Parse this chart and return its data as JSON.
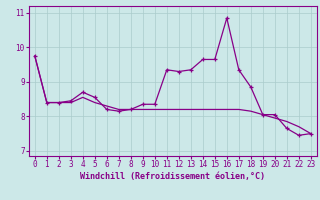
{
  "xlabel": "Windchill (Refroidissement éolien,°C)",
  "background_color": "#cce8e8",
  "line_color": "#880088",
  "grid_color": "#aacccc",
  "x_values": [
    0,
    1,
    2,
    3,
    4,
    5,
    6,
    7,
    8,
    9,
    10,
    11,
    12,
    13,
    14,
    15,
    16,
    17,
    18,
    19,
    20,
    21,
    22,
    23
  ],
  "y_values1": [
    9.75,
    8.4,
    8.4,
    8.45,
    8.7,
    8.55,
    8.2,
    8.15,
    8.2,
    8.35,
    8.35,
    9.35,
    9.3,
    9.35,
    9.65,
    9.65,
    10.85,
    9.35,
    8.85,
    8.05,
    8.05,
    7.65,
    7.45,
    7.5
  ],
  "y_values2": [
    9.75,
    8.4,
    8.4,
    8.4,
    8.55,
    8.4,
    8.3,
    8.2,
    8.2,
    8.2,
    8.2,
    8.2,
    8.2,
    8.2,
    8.2,
    8.2,
    8.2,
    8.2,
    8.15,
    8.05,
    7.95,
    7.85,
    7.7,
    7.5
  ],
  "ylim": [
    6.85,
    11.2
  ],
  "xlim": [
    -0.5,
    23.5
  ],
  "yticks": [
    7,
    8,
    9,
    10,
    11
  ],
  "xticks": [
    0,
    1,
    2,
    3,
    4,
    5,
    6,
    7,
    8,
    9,
    10,
    11,
    12,
    13,
    14,
    15,
    16,
    17,
    18,
    19,
    20,
    21,
    22,
    23
  ],
  "xlabel_fontsize": 6.0,
  "tick_fontsize": 5.5,
  "linewidth": 0.9,
  "markersize": 3.0
}
